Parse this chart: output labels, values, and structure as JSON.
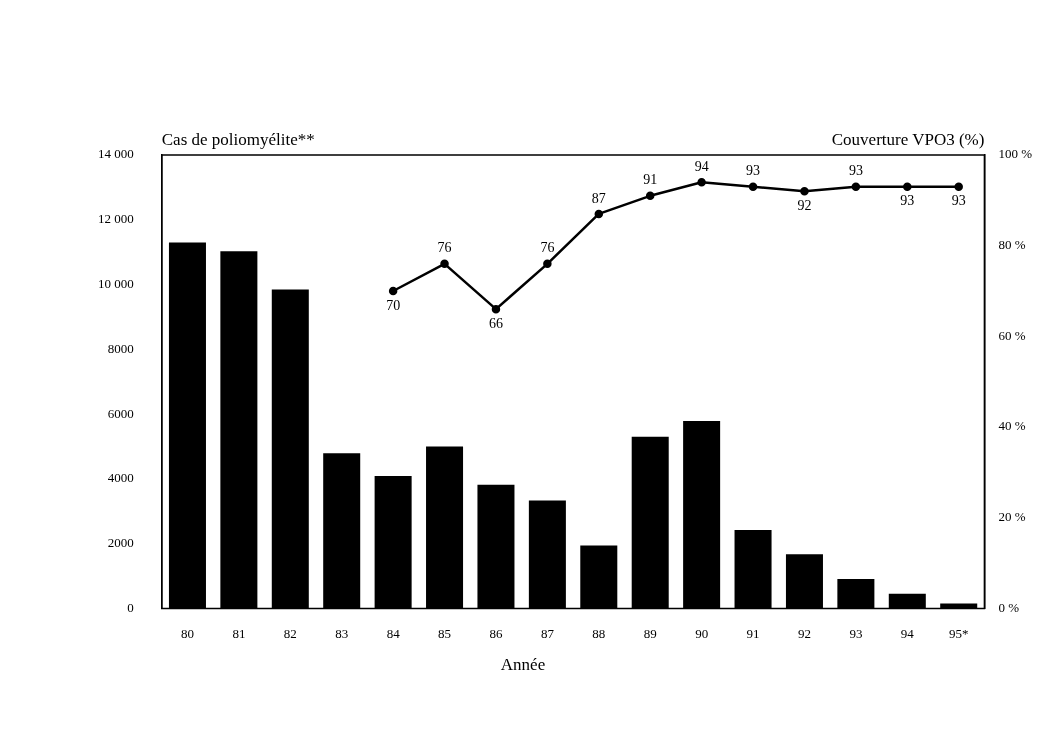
{
  "chart_data": {
    "type": "bar",
    "xlabel": "Année",
    "ylabel": "Cas de poliomyélite**",
    "y2label": "Couverture VPO3 (%)",
    "categories": [
      "80",
      "81",
      "82",
      "83",
      "84",
      "85",
      "86",
      "87",
      "88",
      "89",
      "90",
      "91",
      "92",
      "93",
      "94",
      "95*"
    ],
    "series": [
      {
        "color": "#000000",
        "values": [
          11300,
          11030,
          9850,
          4790,
          4090,
          5000,
          3820,
          3330,
          1940,
          5300,
          5790,
          2420,
          1670,
          910,
          450,
          150
        ]
      },
      {
        "type": "line",
        "axis": "y2",
        "color": "#000000",
        "marker": "circle",
        "values": [
          null,
          null,
          null,
          null,
          70,
          76,
          66,
          76,
          87,
          91,
          94,
          93,
          92,
          93,
          93,
          93
        ],
        "value_labels": [
          null,
          null,
          null,
          null,
          "70",
          "76",
          "66",
          "76",
          "87",
          "91",
          "94",
          "93",
          "92",
          "93",
          "93",
          "93"
        ]
      }
    ],
    "ylim": [
      0,
      14000
    ],
    "yticks": [
      0,
      2000,
      4000,
      6000,
      8000,
      {
        "value": 10000,
        "label": "10 000"
      },
      {
        "value": 12000,
        "label": "12 000"
      },
      {
        "value": 14000,
        "label": "14 000"
      }
    ],
    "y2lim": [
      0,
      100
    ],
    "y2ticks": [
      {
        "value": 0,
        "label": "0 %"
      },
      {
        "value": 20,
        "label": "20 %"
      },
      {
        "value": 40,
        "label": "40 %"
      },
      {
        "value": 60,
        "label": "60 %"
      },
      {
        "value": 80,
        "label": "80 %"
      },
      {
        "value": 100,
        "label": "100 %"
      }
    ],
    "grid": false,
    "legend": false
  }
}
